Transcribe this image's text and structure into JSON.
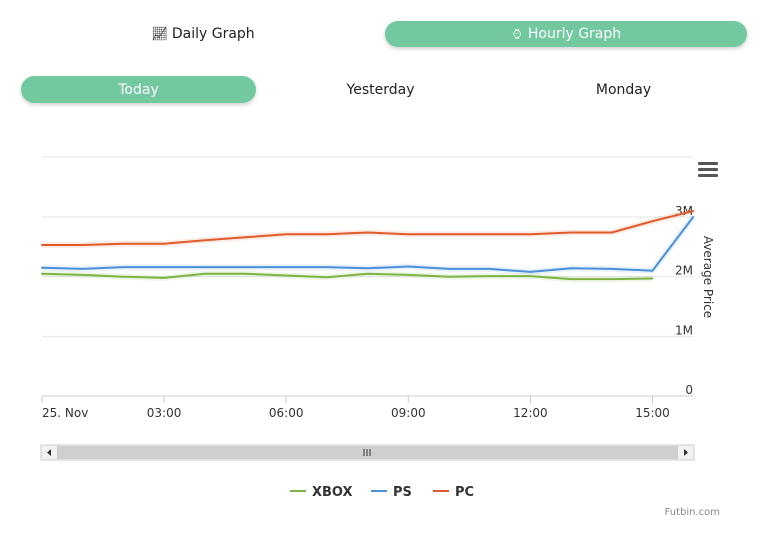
{
  "toggles": {
    "daily_label": "Daily Graph",
    "hourly_label": "Hourly Graph",
    "today_label": "Today",
    "yesterday_label": "Yesterday",
    "monday_label": "Monday"
  },
  "colors": {
    "accent": "#72c9a0",
    "xbox": "#7cb342",
    "ps": "#4a90d9",
    "pc": "#e05a2b"
  },
  "credit": "Futbin.com",
  "chart_data": {
    "type": "line",
    "x_ticks": [
      "25. Nov",
      "03:00",
      "06:00",
      "09:00",
      "12:00",
      "15:00"
    ],
    "x_hours_range": [
      0,
      16
    ],
    "ylabel": "Average Price",
    "y_ticks": [
      "0",
      "1M",
      "2M",
      "3M"
    ],
    "ylim": [
      0,
      3000000
    ],
    "y_axis_side": "right",
    "grid": true,
    "legend_position": "bottom-center",
    "series": [
      {
        "name": "XBOX",
        "color": "#7cb342",
        "points": [
          [
            0,
            2050000
          ],
          [
            1,
            2030000
          ],
          [
            2,
            2000000
          ],
          [
            3,
            1980000
          ],
          [
            4,
            2050000
          ],
          [
            5,
            2050000
          ],
          [
            6,
            2020000
          ],
          [
            7,
            1990000
          ],
          [
            8,
            2050000
          ],
          [
            9,
            2030000
          ],
          [
            10,
            2000000
          ],
          [
            11,
            2010000
          ],
          [
            12,
            2010000
          ],
          [
            13,
            1960000
          ],
          [
            14,
            1960000
          ],
          [
            15,
            1970000
          ]
        ]
      },
      {
        "name": "PS",
        "color": "#4a90d9",
        "points": [
          [
            0,
            2150000
          ],
          [
            1,
            2130000
          ],
          [
            2,
            2160000
          ],
          [
            3,
            2160000
          ],
          [
            4,
            2160000
          ],
          [
            5,
            2160000
          ],
          [
            6,
            2160000
          ],
          [
            7,
            2160000
          ],
          [
            8,
            2140000
          ],
          [
            9,
            2170000
          ],
          [
            10,
            2130000
          ],
          [
            11,
            2130000
          ],
          [
            12,
            2080000
          ],
          [
            13,
            2140000
          ],
          [
            14,
            2130000
          ],
          [
            15,
            2100000
          ],
          [
            16,
            3000000
          ]
        ]
      },
      {
        "name": "PC",
        "color": "#e05a2b",
        "points": [
          [
            0,
            2530000
          ],
          [
            1,
            2530000
          ],
          [
            2,
            2550000
          ],
          [
            3,
            2550000
          ],
          [
            4,
            2610000
          ],
          [
            5,
            2660000
          ],
          [
            6,
            2710000
          ],
          [
            7,
            2710000
          ],
          [
            8,
            2740000
          ],
          [
            9,
            2710000
          ],
          [
            10,
            2710000
          ],
          [
            11,
            2710000
          ],
          [
            12,
            2710000
          ],
          [
            13,
            2740000
          ],
          [
            14,
            2740000
          ],
          [
            15,
            2930000
          ],
          [
            16,
            3100000
          ]
        ]
      }
    ]
  }
}
